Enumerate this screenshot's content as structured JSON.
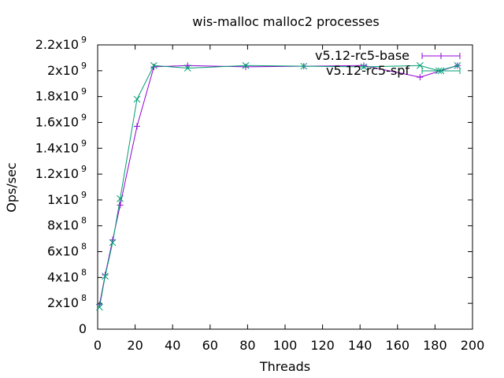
{
  "chart_data": {
    "type": "line",
    "title": "wis-malloc malloc2 processes",
    "xlabel": "Threads",
    "ylabel": "Ops/sec",
    "xlim": [
      0,
      200
    ],
    "ylim": [
      0,
      2200000000
    ],
    "x_ticks": [
      "0",
      "20",
      "40",
      "60",
      "80",
      "100",
      "120",
      "140",
      "160",
      "180",
      "200"
    ],
    "y_ticks": [
      {
        "value": 0,
        "mantissa": "0",
        "exp": ""
      },
      {
        "value": 200000000,
        "mantissa": "2x10",
        "exp": "8"
      },
      {
        "value": 400000000,
        "mantissa": "4x10",
        "exp": "8"
      },
      {
        "value": 600000000,
        "mantissa": "6x10",
        "exp": "8"
      },
      {
        "value": 800000000,
        "mantissa": "8x10",
        "exp": "8"
      },
      {
        "value": 1000000000,
        "mantissa": "1x10",
        "exp": "9"
      },
      {
        "value": 1200000000,
        "mantissa": "1.2x10",
        "exp": "9"
      },
      {
        "value": 1400000000,
        "mantissa": "1.4x10",
        "exp": "9"
      },
      {
        "value": 1600000000,
        "mantissa": "1.6x10",
        "exp": "9"
      },
      {
        "value": 1800000000,
        "mantissa": "1.8x10",
        "exp": "9"
      },
      {
        "value": 2000000000,
        "mantissa": "2x10",
        "exp": "9"
      },
      {
        "value": 2200000000,
        "mantissa": "2.2x10",
        "exp": "9"
      }
    ],
    "grid": false,
    "legend_position": "top-right",
    "series": [
      {
        "name": "v5.12-rc5-base",
        "color": "#9400d3",
        "marker": "plus",
        "x": [
          1,
          4,
          8,
          12,
          21,
          30,
          48,
          79,
          110,
          142,
          172,
          192
        ],
        "y": [
          190000000,
          420000000,
          690000000,
          960000000,
          1570000000,
          2030000000,
          2040000000,
          2030000000,
          2035000000,
          2040000000,
          1950000000,
          2040000000
        ]
      },
      {
        "name": "v5.12-rc5-spf",
        "color": "#009e73",
        "marker": "x",
        "x": [
          1,
          4,
          8,
          12,
          21,
          30,
          48,
          79,
          110,
          142,
          172,
          182,
          192
        ],
        "y": [
          170000000,
          410000000,
          670000000,
          1010000000,
          1780000000,
          2040000000,
          2020000000,
          2040000000,
          2035000000,
          2030000000,
          2040000000,
          2000000000,
          2040000000
        ]
      }
    ]
  }
}
